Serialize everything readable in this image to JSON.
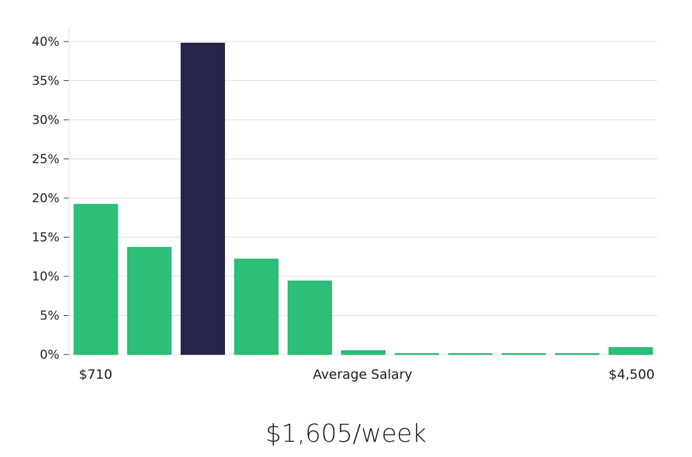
{
  "chart_data": {
    "type": "bar",
    "x_start_label": "$710",
    "x_end_label": "$4,500",
    "xlabel": "Average Salary",
    "values": [
      19.2,
      13.7,
      39.8,
      12.2,
      9.4,
      0.5,
      0.12,
      0.12,
      0.12,
      0.12,
      0.9
    ],
    "highlight_index": 2,
    "ylim": [
      0,
      40
    ],
    "y_ticks": [
      0,
      5,
      10,
      15,
      20,
      25,
      30,
      35,
      40
    ],
    "y_tick_suffix": "%",
    "grid": true,
    "colors": {
      "bar": "#2bbf78",
      "highlight": "#28254a",
      "grid": "#dcdcdc"
    }
  },
  "salary_text": "$1,605/week"
}
